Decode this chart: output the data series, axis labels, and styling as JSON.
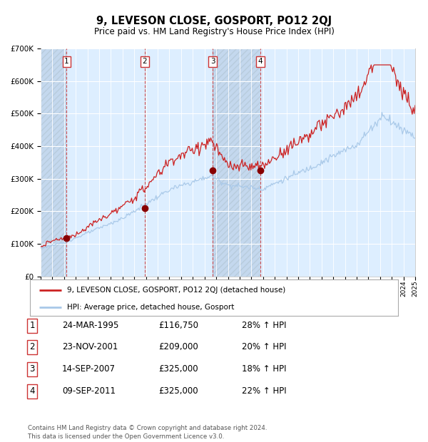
{
  "title": "9, LEVESON CLOSE, GOSPORT, PO12 2QJ",
  "subtitle": "Price paid vs. HM Land Registry's House Price Index (HPI)",
  "hpi_line_color": "#a8c8e8",
  "price_line_color": "#cc2222",
  "sale_marker_color": "#880000",
  "background_plot": "#ddeeff",
  "background_hatch_color": "#c4d8ee",
  "grid_color": "#ffffff",
  "ylim": [
    0,
    700000
  ],
  "yticks": [
    0,
    100000,
    200000,
    300000,
    400000,
    500000,
    600000,
    700000
  ],
  "ytick_labels": [
    "£0",
    "£100K",
    "£200K",
    "£300K",
    "£400K",
    "£500K",
    "£600K",
    "£700K"
  ],
  "year_start": 1993,
  "year_end": 2025,
  "sales": [
    {
      "num": 1,
      "date": "24-MAR-1995",
      "year": 1995.22,
      "price": 116750,
      "label": "1"
    },
    {
      "num": 2,
      "date": "23-NOV-2001",
      "year": 2001.9,
      "price": 209000,
      "label": "2"
    },
    {
      "num": 3,
      "date": "14-SEP-2007",
      "year": 2007.71,
      "price": 325000,
      "label": "3"
    },
    {
      "num": 4,
      "date": "09-SEP-2011",
      "year": 2011.75,
      "price": 325000,
      "label": "4"
    }
  ],
  "legend_line1": "9, LEVESON CLOSE, GOSPORT, PO12 2QJ (detached house)",
  "legend_line2": "HPI: Average price, detached house, Gosport",
  "footer": "Contains HM Land Registry data © Crown copyright and database right 2024.\nThis data is licensed under the Open Government Licence v3.0.",
  "table_rows": [
    [
      "1",
      "24-MAR-1995",
      "£116,750",
      "28% ↑ HPI"
    ],
    [
      "2",
      "23-NOV-2001",
      "£209,000",
      "20% ↑ HPI"
    ],
    [
      "3",
      "14-SEP-2007",
      "£325,000",
      "18% ↑ HPI"
    ],
    [
      "4",
      "09-SEP-2011",
      "£325,000",
      "22% ↑ HPI"
    ]
  ]
}
